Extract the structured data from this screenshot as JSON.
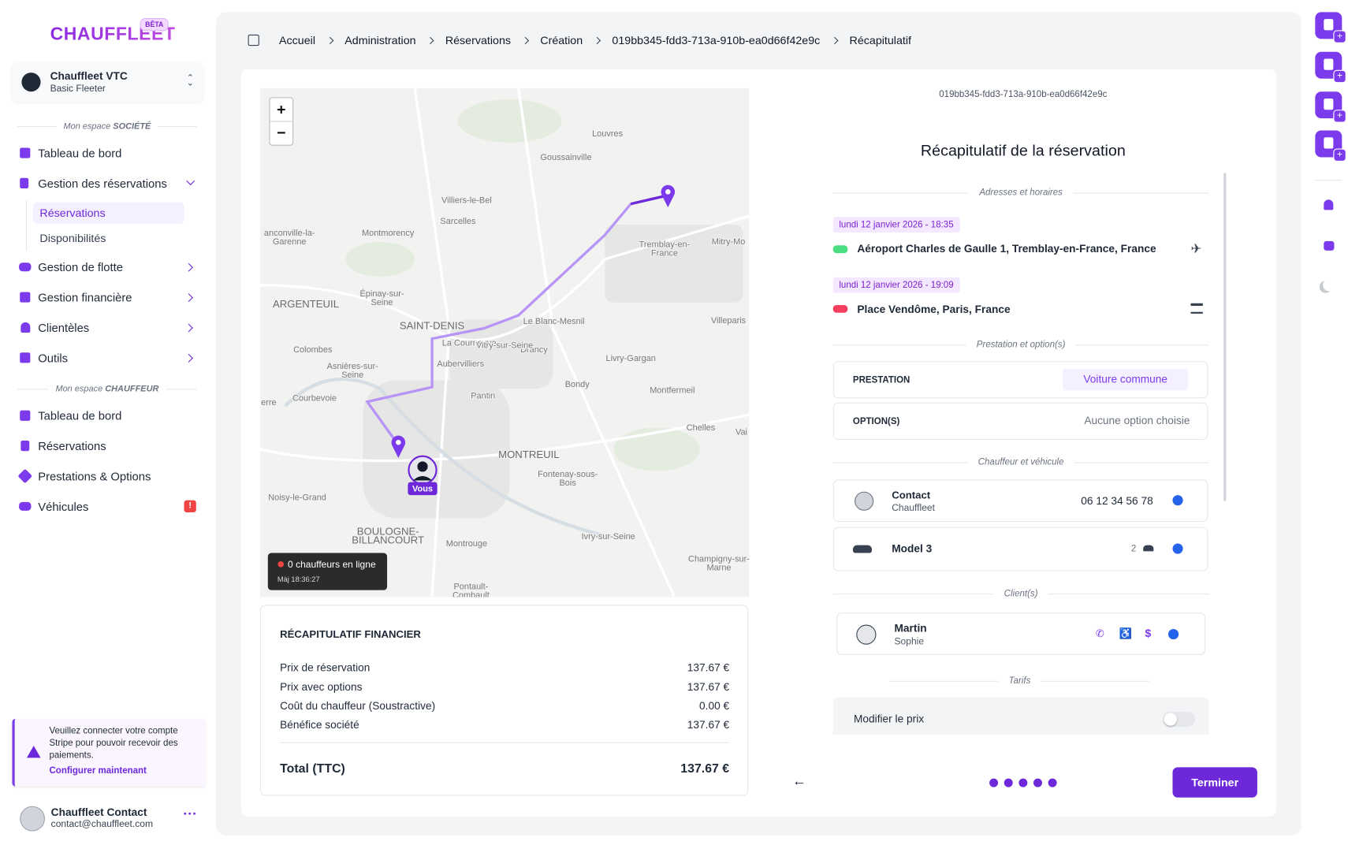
{
  "sidebar": {
    "logo": "CHAUFFLEET",
    "badge": "BÊTA",
    "company": {
      "name": "Chauffleet VTC",
      "plan": "Basic Fleeter"
    },
    "section1": {
      "prefix": "Mon espace",
      "name": "SOCIÉTÉ"
    },
    "menu1": [
      "Tableau de bord",
      "Gestion des réservations",
      "Réservations",
      "Disponibilités",
      "Gestion de flotte",
      "Gestion financière",
      "Clientèles",
      "Outils"
    ],
    "section2": {
      "prefix": "Mon espace",
      "name": "CHAUFFEUR"
    },
    "menu2": [
      "Tableau de bord",
      "Réservations",
      "Prestations & Options",
      "Véhicules"
    ],
    "alert_badge": "!",
    "warning": {
      "text": "Veuillez connecter votre compte Stripe pour pouvoir recevoir des paiements.",
      "link": "Configurer maintenant"
    },
    "user": {
      "name": "Chauffleet Contact",
      "email": "contact@chauffleet.com"
    }
  },
  "breadcrumb": [
    "Accueil",
    "Administration",
    "Réservations",
    "Création",
    "019bb345-fdd3-713a-910b-ea0d66f42e9c",
    "Récapitulatif"
  ],
  "map": {
    "zoom_in": "+",
    "zoom_out": "−",
    "labels": [
      "Louvres",
      "Goussainville",
      "Villiers-le-Bel",
      "Sarcelles",
      "anconville-la-\nGarenne",
      "Montmorency",
      "Tremblay-en-\nFrance",
      "Mitry-Mo",
      "Épinay-sur-\nSeine",
      "ARGENTEUIL",
      "SAINT-DENIS",
      "Le Blanc-Mesnil",
      "Villeparis",
      "La Courneuve",
      "Colombes",
      "Drancy",
      "Livry-Gargan",
      "Asnières-sur-\nSeine",
      "Aubervilliers",
      "Bondy",
      "Montfermeil",
      "erre",
      "Courbevoie",
      "Pantin",
      "Chelles",
      "Vai",
      "MONTREUIL",
      "Fontenay-sous-\nBois",
      "Noisy-le-Grand",
      "BOULOGNE-\nBILLANCOURT",
      "Montrouge",
      "Ivry-sur-Seine",
      "Champigny-sur-\nMarne",
      "Pontault-\nCombault",
      "Vitry-sur-Seine"
    ],
    "you": "Vous",
    "status": {
      "text": "0 chauffeurs en ligne",
      "updated": "Màj 18:36:27"
    }
  },
  "finance": {
    "title": "RÉCAPITULATIF FINANCIER",
    "rows": [
      [
        "Prix de réservation",
        "137.67 €"
      ],
      [
        "Prix avec options",
        "137.67 €"
      ],
      [
        "Coût du chauffeur (Soustractive)",
        "0.00 €"
      ],
      [
        "Bénéfice société",
        "137.67 €"
      ]
    ],
    "total": [
      "Total (TTC)",
      "137.67 €"
    ]
  },
  "summary": {
    "id": "019bb345-fdd3-713a-910b-ea0d66f42e9c",
    "title": "Récapitulatif de la réservation",
    "sections": [
      "Adresses et horaires",
      "Prestation et option(s)",
      "Chauffeur et véhicule",
      "Client(s)",
      "Tarifs"
    ],
    "stops": [
      {
        "time": "lundi 12 janvier 2026 - 18:35",
        "address": "Aéroport Charles de Gaulle 1, Tremblay-en-France, France"
      },
      {
        "time": "lundi 12 janvier 2026 - 19:09",
        "address": "Place Vendôme, Paris, France"
      }
    ],
    "prestation": {
      "label": "PRESTATION",
      "value": "Voiture commune"
    },
    "options": {
      "label": "OPTION(S)",
      "value": "Aucune option choisie"
    },
    "driver": {
      "name": "Contact",
      "company": "Chauffleet",
      "phone": "06 12 34 56 78"
    },
    "vehicle": {
      "model": "Model 3",
      "seats": 2
    },
    "client": {
      "last_name": "Martin",
      "first_name": "Sophie"
    },
    "price_toggle": "Modifier le prix"
  },
  "footer": {
    "button": "Terminer"
  }
}
